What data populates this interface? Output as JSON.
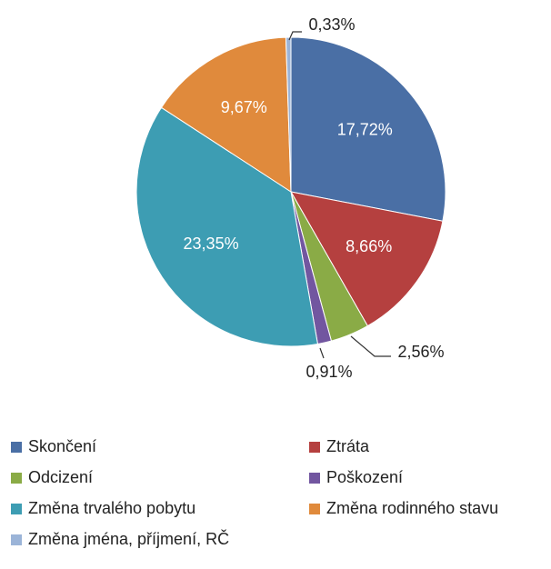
{
  "chart_data": {
    "type": "pie",
    "categories": [
      "Skončení",
      "Ztráta",
      "Odcizení",
      "Poškození",
      "Změna trvalého pobytu",
      "Změna rodinného stavu",
      "Změna jména, příjmení, RČ"
    ],
    "values": [
      17.72,
      8.66,
      2.56,
      0.91,
      23.35,
      9.67,
      0.33
    ],
    "value_labels": [
      "17,72%",
      "8,66%",
      "2,56%",
      "0,91%",
      "23,35%",
      "9,67%",
      "0,33%"
    ],
    "colors": [
      "#4a6fa5",
      "#b5403f",
      "#8aab46",
      "#7256a0",
      "#3d9db3",
      "#e08a3c",
      "#9bb4d8"
    ]
  }
}
